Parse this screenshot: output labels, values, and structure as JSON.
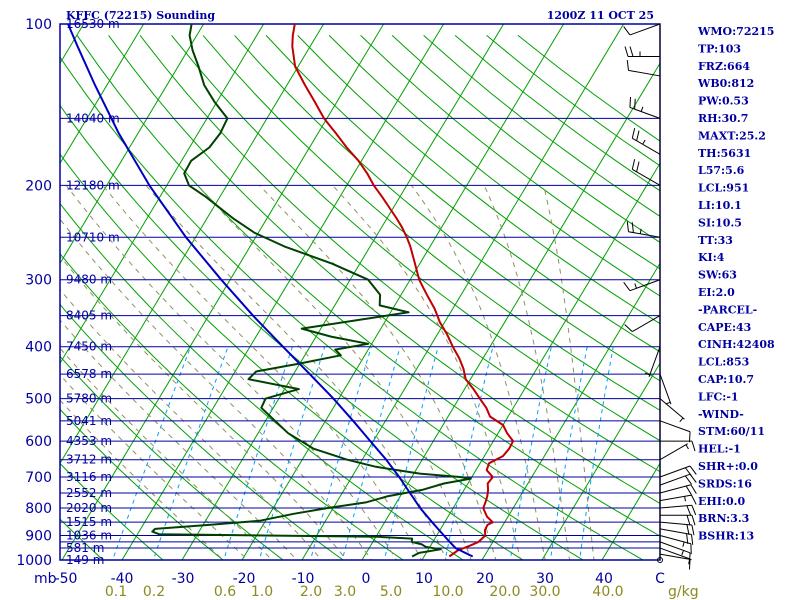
{
  "header": {
    "left_title": "KFFC (72215) Sounding",
    "right_title": "1200Z 11 OCT 25"
  },
  "colors": {
    "frame": "#0000a0",
    "isobar": "#0000a0",
    "isotherm": "#00a000",
    "dry_adiabat": "#00a000",
    "moist_adiabat": "#909060",
    "mixing_ratio": "#00a0ff",
    "temperature": "#c00000",
    "dewpoint": "#004000",
    "parcel": "#0000c0",
    "mixing_ratio_labels": "#8a8a20"
  },
  "side_panel": [
    "WMO:72215",
    "TP:103",
    "FRZ:664",
    "WB0:812",
    "PW:0.53",
    "RH:30.7",
    "MAXT:25.2",
    "TH:5631",
    "L57:5.6",
    "LCL:951",
    "LI:10.1",
    "SI:10.5",
    "TT:33",
    "KI:4",
    "SW:63",
    "EI:2.0",
    "-PARCEL-",
    "CAPE:43",
    "CINH:42408",
    "LCL:853",
    "CAP:10.7",
    "LFC:-1",
    "-WIND-",
    "STM:60/11",
    "HEL:-1",
    "SHR+:0.0",
    "SRDS:16",
    "EHI:0.0",
    "BRN:3.3",
    "BSHR:13"
  ],
  "chart_data": {
    "type": "line",
    "title": "KFFC (72215) Sounding",
    "subtitle": "1200Z 11 OCT 25",
    "xlabel": "",
    "ylabel": "mb",
    "y_log_scale": true,
    "ylim": [
      1000,
      100
    ],
    "xlim": [
      -50,
      50
    ],
    "pressure_labels": [
      "100",
      "200",
      "300",
      "400",
      "500",
      "600",
      "700",
      "800",
      "900",
      "1000"
    ],
    "pressure_ticks": [
      100,
      200,
      300,
      400,
      500,
      600,
      700,
      800,
      900,
      1000
    ],
    "isobar_levels": [
      100,
      150,
      200,
      250,
      300,
      350,
      400,
      450,
      500,
      550,
      600,
      650,
      700,
      750,
      800,
      850,
      900,
      925,
      950,
      1000
    ],
    "x_unit_label": "mb",
    "temperature_ticks": [
      "-50",
      "-40",
      "-30",
      "-20",
      "-10",
      "0",
      "10",
      "20",
      "30",
      "40",
      "C"
    ],
    "temperature_tick_values": [
      -50,
      -40,
      -30,
      -20,
      -10,
      0,
      10,
      20,
      30,
      40
    ],
    "mixing_ratio_labels": [
      "0.1",
      "0.2",
      "0.6",
      "1.0",
      "2.0",
      "3.0",
      "5.0",
      "10.0",
      "20.0",
      "30.0",
      "40.0",
      "g/kg"
    ],
    "height_labels": [
      {
        "p": 100,
        "label": "16530 m"
      },
      {
        "p": 150,
        "label": "14040 m"
      },
      {
        "p": 200,
        "label": "12180 m"
      },
      {
        "p": 250,
        "label": "10710 m"
      },
      {
        "p": 300,
        "label": "9480 m"
      },
      {
        "p": 350,
        "label": "8405 m"
      },
      {
        "p": 400,
        "label": "7450 m"
      },
      {
        "p": 450,
        "label": "6578 m"
      },
      {
        "p": 500,
        "label": "5780 m"
      },
      {
        "p": 550,
        "label": "5041 m"
      },
      {
        "p": 600,
        "label": "4353 m"
      },
      {
        "p": 650,
        "label": "3712 m"
      },
      {
        "p": 700,
        "label": "3116 m"
      },
      {
        "p": 750,
        "label": "2552 m"
      },
      {
        "p": 800,
        "label": "2020 m"
      },
      {
        "p": 850,
        "label": "1515 m"
      },
      {
        "p": 900,
        "label": "1036 m"
      },
      {
        "p": 950,
        "label": "581 m"
      },
      {
        "p": 1000,
        "label": "149 m"
      }
    ],
    "series": [
      {
        "name": "Temperature",
        "points": [
          [
            985,
            14.2
          ],
          [
            960,
            15.0
          ],
          [
            940,
            16.6
          ],
          [
            925,
            17.6
          ],
          [
            900,
            18.1
          ],
          [
            880,
            17.5
          ],
          [
            860,
            17.4
          ],
          [
            850,
            18.0
          ],
          [
            830,
            16.5
          ],
          [
            800,
            15.0
          ],
          [
            780,
            14.8
          ],
          [
            760,
            14.5
          ],
          [
            740,
            14.0
          ],
          [
            720,
            13.3
          ],
          [
            700,
            13.5
          ],
          [
            680,
            11.8
          ],
          [
            660,
            11.5
          ],
          [
            640,
            13.1
          ],
          [
            620,
            13.4
          ],
          [
            600,
            13.3
          ],
          [
            580,
            11.5
          ],
          [
            560,
            10.0
          ],
          [
            540,
            7.0
          ],
          [
            520,
            5.5
          ],
          [
            500,
            3.5
          ],
          [
            480,
            1.5
          ],
          [
            460,
            -0.8
          ],
          [
            440,
            -2.2
          ],
          [
            420,
            -4.0
          ],
          [
            400,
            -6.2
          ],
          [
            380,
            -8.3
          ],
          [
            360,
            -10.8
          ],
          [
            340,
            -13.0
          ],
          [
            320,
            -15.7
          ],
          [
            300,
            -18.5
          ],
          [
            280,
            -20.8
          ],
          [
            260,
            -23.3
          ],
          [
            250,
            -24.8
          ],
          [
            240,
            -26.5
          ],
          [
            230,
            -28.5
          ],
          [
            220,
            -30.7
          ],
          [
            210,
            -33.0
          ],
          [
            200,
            -35.5
          ],
          [
            190,
            -37.8
          ],
          [
            180,
            -40.5
          ],
          [
            170,
            -43.8
          ],
          [
            160,
            -47.0
          ],
          [
            150,
            -50.5
          ],
          [
            140,
            -53.6
          ],
          [
            130,
            -57.0
          ],
          [
            120,
            -60.5
          ],
          [
            110,
            -63.0
          ],
          [
            105,
            -64.0
          ],
          [
            100,
            -64.8
          ]
        ]
      },
      {
        "name": "Dewpoint",
        "points": [
          [
            985,
            8.0
          ],
          [
            970,
            8.8
          ],
          [
            955,
            12.0
          ],
          [
            945,
            9.3
          ],
          [
            935,
            8.4
          ],
          [
            925,
            6.5
          ],
          [
            912,
            6.2
          ],
          [
            905,
            0.4
          ],
          [
            895,
            -36.4
          ],
          [
            885,
            -37.8
          ],
          [
            875,
            -37.6
          ],
          [
            860,
            -29.0
          ],
          [
            845,
            -21.0
          ],
          [
            820,
            -16.0
          ],
          [
            800,
            -11.0
          ],
          [
            780,
            -5.0
          ],
          [
            760,
            -2.0
          ],
          [
            740,
            3.0
          ],
          [
            720,
            6.0
          ],
          [
            705,
            10.0
          ],
          [
            700,
            8.0
          ],
          [
            690,
            1.0
          ],
          [
            670,
            -7.0
          ],
          [
            650,
            -12.5
          ],
          [
            620,
            -19.2
          ],
          [
            580,
            -25.0
          ],
          [
            520,
            -32.0
          ],
          [
            500,
            -32.2
          ],
          [
            480,
            -27.6
          ],
          [
            460,
            -37.0
          ],
          [
            445,
            -36.5
          ],
          [
            430,
            -30.0
          ],
          [
            415,
            -24.0
          ],
          [
            405,
            -25.5
          ],
          [
            395,
            -20.6
          ],
          [
            383,
            -27.5
          ],
          [
            370,
            -33.2
          ],
          [
            345,
            -17.0
          ],
          [
            335,
            -22.5
          ],
          [
            320,
            -23.5
          ],
          [
            300,
            -27.0
          ],
          [
            280,
            -34.6
          ],
          [
            260,
            -44.3
          ],
          [
            245,
            -50.7
          ],
          [
            230,
            -55.8
          ],
          [
            210,
            -62.4
          ],
          [
            200,
            -66.3
          ],
          [
            190,
            -68.3
          ],
          [
            180,
            -68.4
          ],
          [
            170,
            -66.7
          ],
          [
            160,
            -66.3
          ],
          [
            150,
            -66.6
          ],
          [
            140,
            -70.3
          ],
          [
            130,
            -73.8
          ],
          [
            120,
            -76.6
          ],
          [
            112,
            -79.2
          ],
          [
            105,
            -81.2
          ],
          [
            100,
            -82.0
          ]
        ]
      },
      {
        "name": "Parcel",
        "points": [
          [
            985,
            18.1
          ],
          [
            950,
            14.4
          ],
          [
            925,
            12.8
          ],
          [
            900,
            11.2
          ],
          [
            850,
            7.9
          ],
          [
            800,
            4.5
          ],
          [
            750,
            1.3
          ],
          [
            700,
            -2.1
          ],
          [
            650,
            -6.0
          ],
          [
            600,
            -10.5
          ],
          [
            550,
            -15.4
          ],
          [
            500,
            -20.9
          ],
          [
            450,
            -27.3
          ],
          [
            400,
            -34.5
          ],
          [
            350,
            -42.6
          ],
          [
            300,
            -51.5
          ],
          [
            250,
            -61.6
          ],
          [
            200,
            -72.9
          ],
          [
            160,
            -83.2
          ],
          [
            130,
            -92.0
          ],
          [
            110,
            -98.8
          ],
          [
            100,
            -102.6
          ]
        ]
      }
    ],
    "wind_barbs": [
      {
        "p": 1000,
        "dir": 90,
        "spd": 0
      },
      {
        "p": 975,
        "dir": 100,
        "spd": 5
      },
      {
        "p": 950,
        "dir": 110,
        "spd": 10
      },
      {
        "p": 925,
        "dir": 110,
        "spd": 15
      },
      {
        "p": 900,
        "dir": 105,
        "spd": 15
      },
      {
        "p": 875,
        "dir": 100,
        "spd": 20
      },
      {
        "p": 850,
        "dir": 95,
        "spd": 20
      },
      {
        "p": 825,
        "dir": 90,
        "spd": 20
      },
      {
        "p": 800,
        "dir": 85,
        "spd": 20
      },
      {
        "p": 775,
        "dir": 80,
        "spd": 15
      },
      {
        "p": 750,
        "dir": 75,
        "spd": 20
      },
      {
        "p": 725,
        "dir": 70,
        "spd": 20
      },
      {
        "p": 700,
        "dir": 70,
        "spd": 20
      },
      {
        "p": 650,
        "dir": 60,
        "spd": 5
      },
      {
        "p": 600,
        "dir": 90,
        "spd": 10
      },
      {
        "p": 550,
        "dir": 110,
        "spd": 10
      },
      {
        "p": 500,
        "dir": 130,
        "spd": 5
      },
      {
        "p": 450,
        "dir": 160,
        "spd": 5
      },
      {
        "p": 400,
        "dir": 200,
        "spd": 5
      },
      {
        "p": 350,
        "dir": 240,
        "spd": 10
      },
      {
        "p": 300,
        "dir": 250,
        "spd": 15
      },
      {
        "p": 250,
        "dir": 280,
        "spd": 25
      },
      {
        "p": 200,
        "dir": 300,
        "spd": 20
      },
      {
        "p": 175,
        "dir": 300,
        "spd": 25
      },
      {
        "p": 150,
        "dir": 290,
        "spd": 25
      },
      {
        "p": 125,
        "dir": 280,
        "spd": 10
      },
      {
        "p": 115,
        "dir": 270,
        "spd": 25
      },
      {
        "p": 100,
        "dir": 250,
        "spd": 10
      }
    ]
  }
}
